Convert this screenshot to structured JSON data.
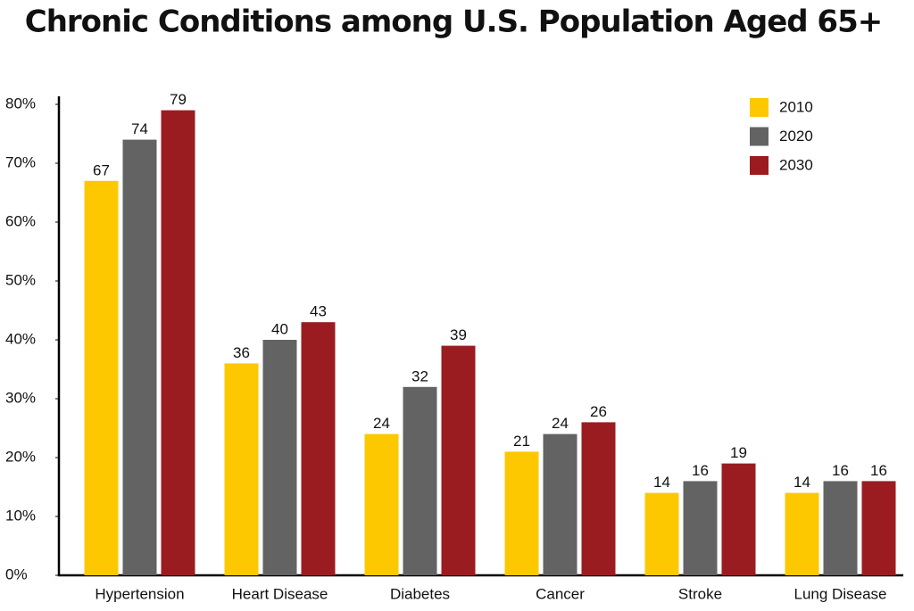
{
  "chart_data": {
    "type": "bar",
    "title": "Chronic Conditions among U.S. Population Aged 65+",
    "categories": [
      "Hypertension",
      "Heart Disease",
      "Diabetes",
      "Cancer",
      "Stroke",
      "Lung Disease"
    ],
    "series": [
      {
        "name": "2010",
        "color": "#fdc800",
        "values": [
          67,
          36,
          24,
          21,
          14,
          14
        ]
      },
      {
        "name": "2020",
        "color": "#636363",
        "values": [
          74,
          40,
          32,
          24,
          16,
          16
        ]
      },
      {
        "name": "2030",
        "color": "#9b1c20",
        "values": [
          79,
          43,
          39,
          26,
          19,
          16
        ]
      }
    ],
    "ylim": [
      0,
      80
    ],
    "yticks": [
      {
        "value": 0,
        "label": "0%"
      },
      {
        "value": 10,
        "label": "10%"
      },
      {
        "value": 20,
        "label": "20%"
      },
      {
        "value": 30,
        "label": "30%"
      },
      {
        "value": 40,
        "label": "40%"
      },
      {
        "value": 50,
        "label": "50%"
      },
      {
        "value": 60,
        "label": "60%"
      },
      {
        "value": 70,
        "label": "70%"
      },
      {
        "value": 80,
        "label": "80%"
      }
    ],
    "grid": false,
    "legend": "top-right"
  }
}
